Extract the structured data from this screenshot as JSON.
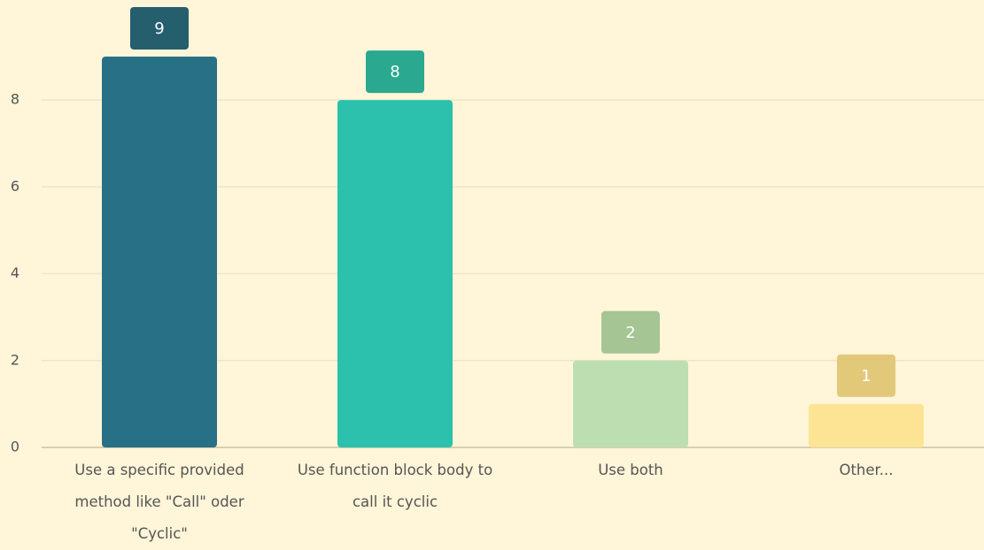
{
  "chart_data": {
    "type": "bar",
    "categories": [
      "Use a specific provided method like \"Call\" oder \"Cyclic\"",
      "Use function block body to call it cyclic",
      "Use both",
      "Other..."
    ],
    "values": [
      9,
      8,
      2,
      1
    ],
    "colors": [
      "#277085",
      "#2bc1ac",
      "#bddeb0",
      "#fde495"
    ],
    "label_colors": [
      "#255e6d",
      "#2aa890",
      "#a5c594",
      "#e2c97a"
    ],
    "ylim": [
      0,
      9
    ],
    "yticks": [
      0,
      2,
      4,
      6,
      8
    ],
    "grid": true
  }
}
